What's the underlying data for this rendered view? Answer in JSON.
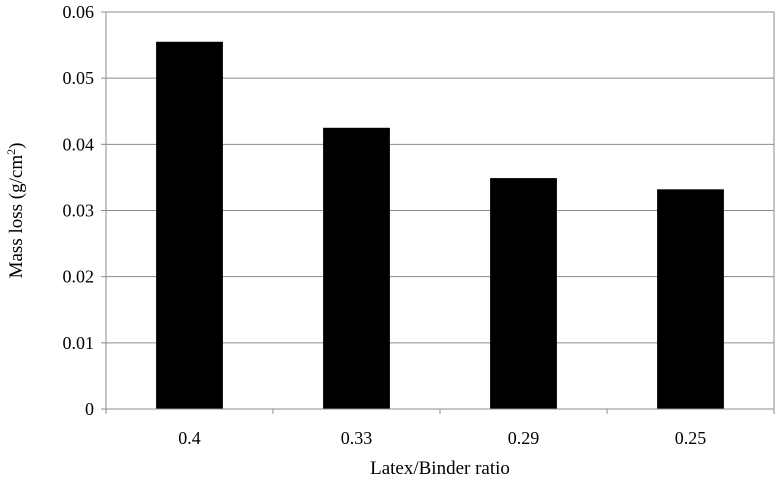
{
  "chart_data": {
    "type": "bar",
    "categories": [
      "0.4",
      "0.33",
      "0.29",
      "0.25"
    ],
    "values": [
      0.0555,
      0.0425,
      0.0349,
      0.0332
    ],
    "title": "",
    "xlabel": "Latex/Binder ratio",
    "ylabel_main": "Mass loss (g/cm",
    "ylabel_sup": "2",
    "ylabel_end": ")",
    "ylim": [
      0,
      0.06
    ],
    "yticks": [
      "0",
      "0.01",
      "0.02",
      "0.03",
      "0.04",
      "0.05",
      "0.06"
    ],
    "grid": true,
    "legend": "none",
    "bar_color": "#000000",
    "grid_color": "#8c8c8c"
  }
}
